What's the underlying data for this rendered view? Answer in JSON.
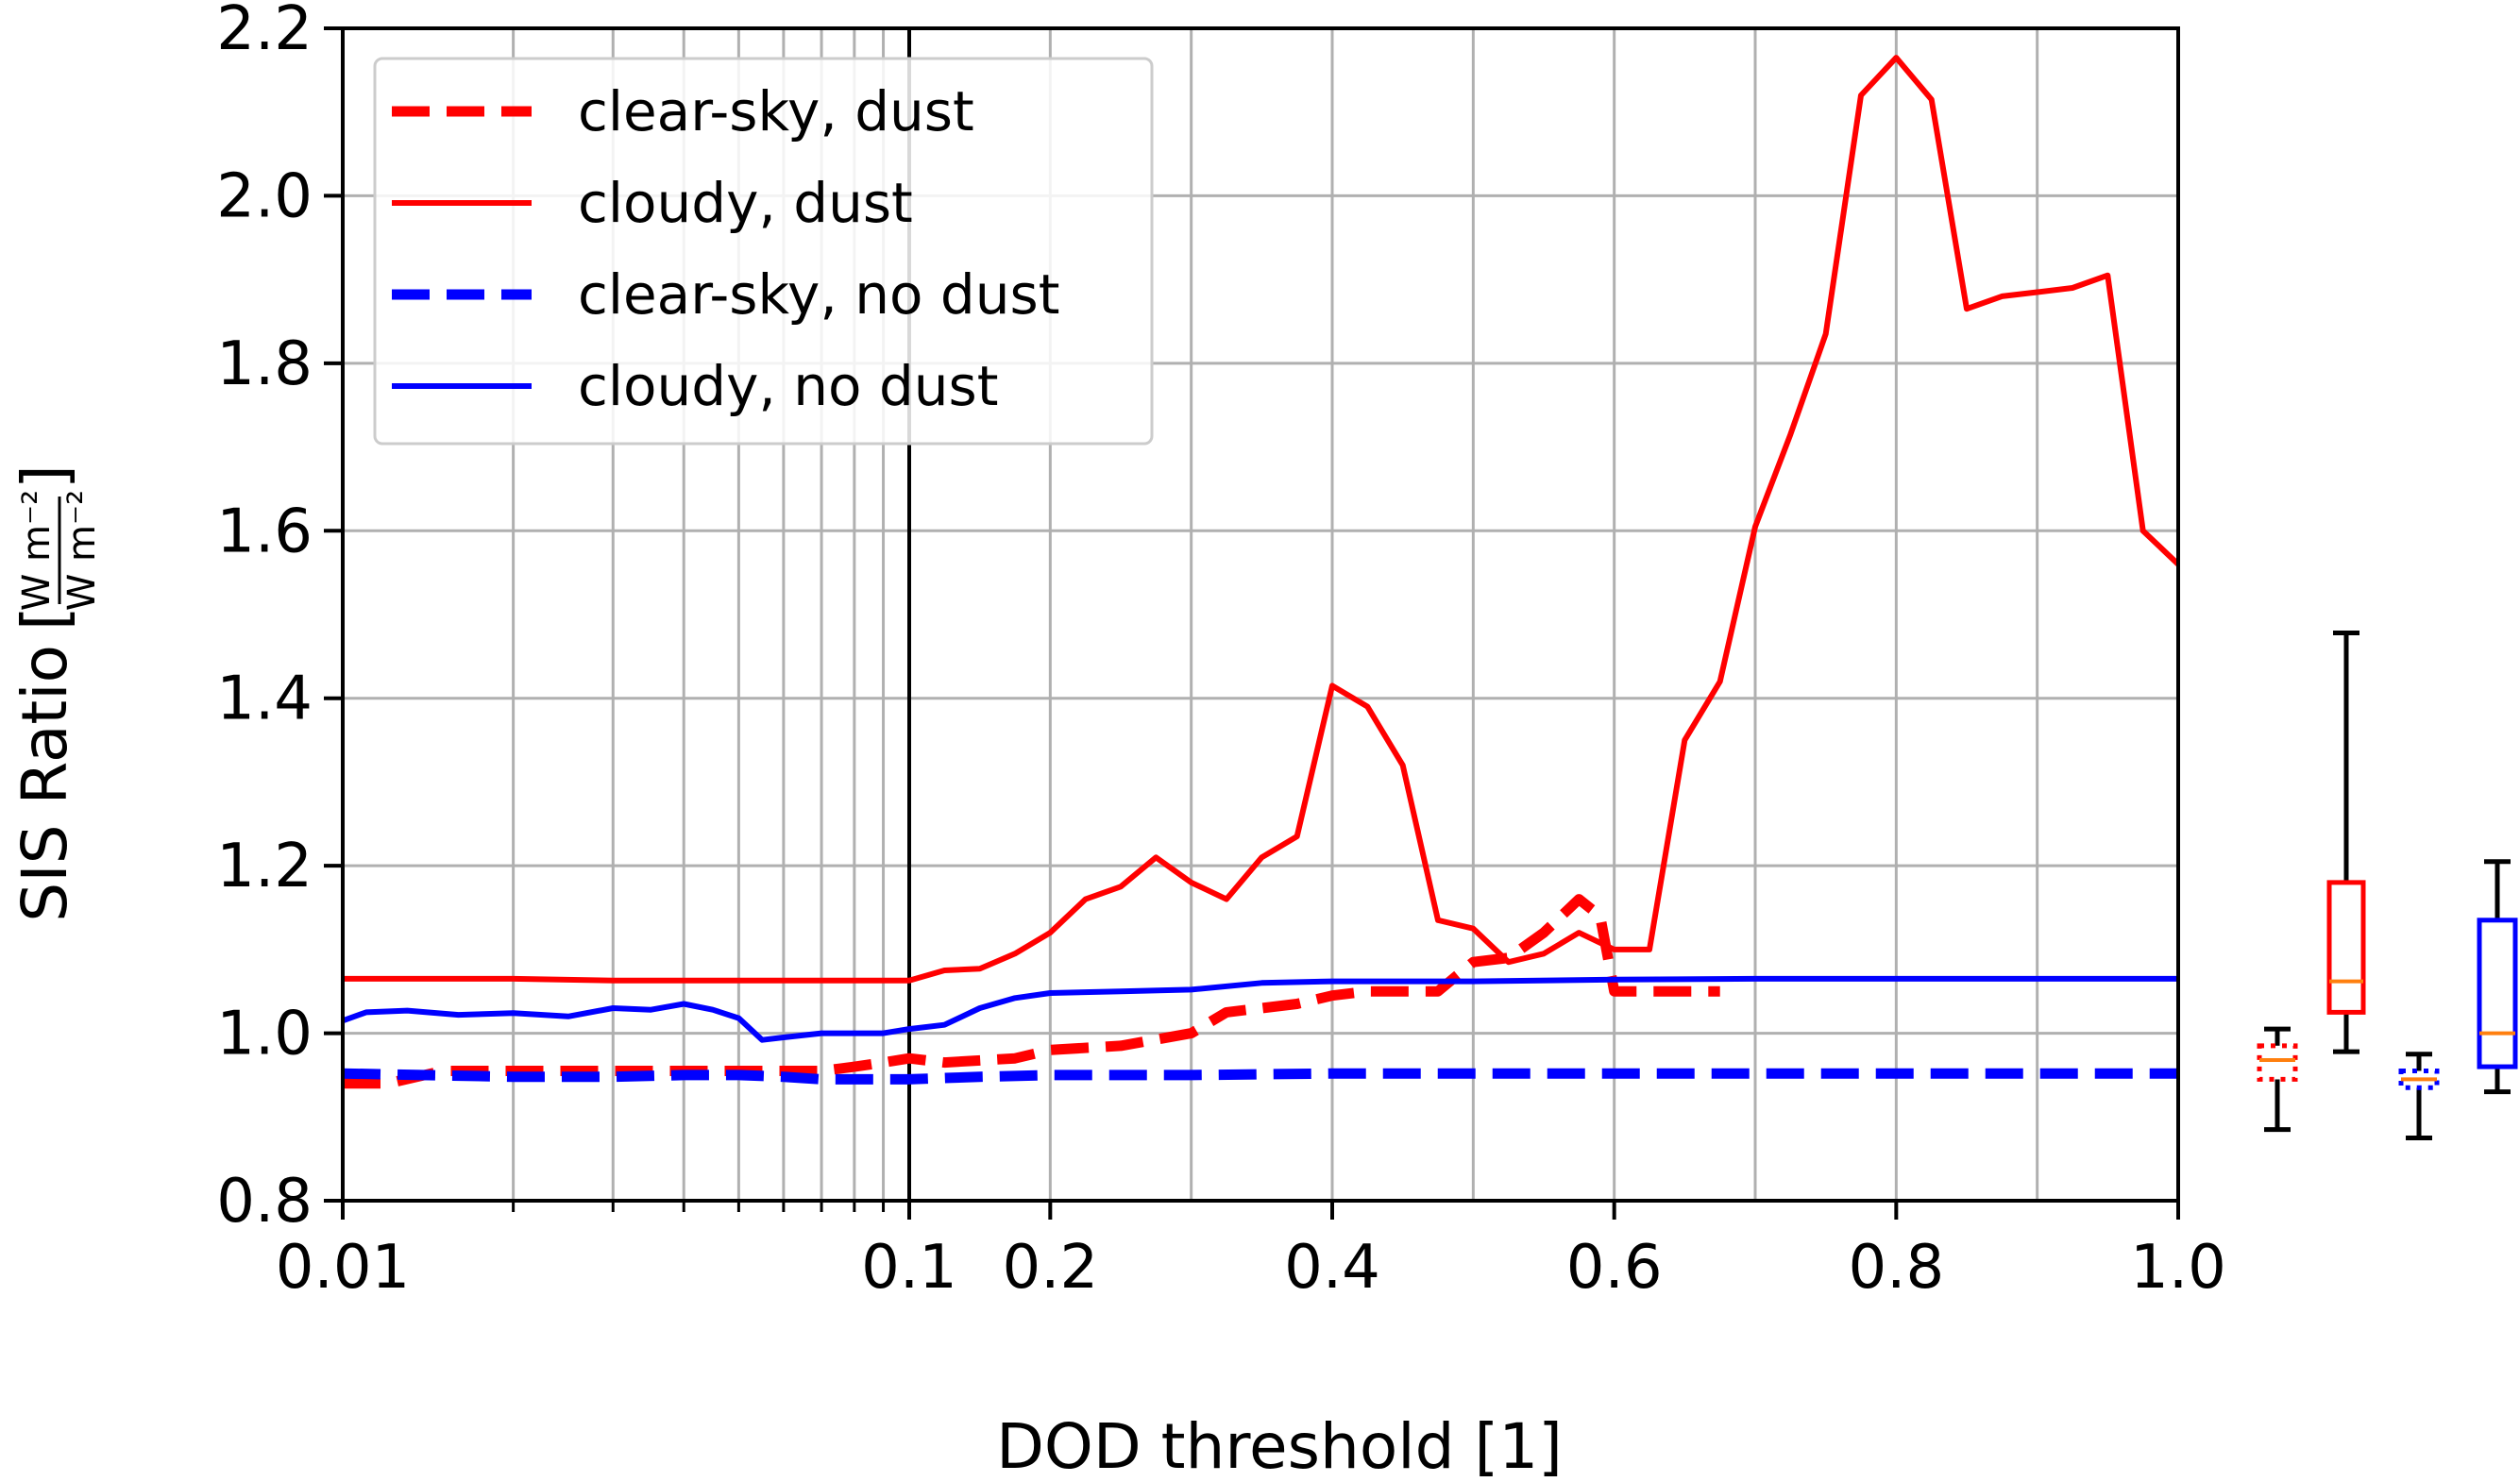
{
  "chart_data": {
    "type": "line",
    "xlabel": "DOD threshold [1]",
    "ylabel": "SIS Ratio",
    "ylabel_unit_numerator": "W m⁻²",
    "ylabel_unit_denominator": "W m⁻²",
    "ylim": [
      0.8,
      2.2
    ],
    "yticks": [
      "0.8",
      "1.0",
      "1.2",
      "1.4",
      "1.6",
      "1.8",
      "2.0",
      "2.2"
    ],
    "x_scale": "log from 0.01 to 0.1, linear from 0.1 to 1.0",
    "xticks": [
      "0.01",
      "0.1",
      "0.2",
      "0.4",
      "0.6",
      "0.8",
      "1.0"
    ],
    "grid": true,
    "legend_position": "upper-left",
    "series": [
      {
        "name": "clear-sky, dust",
        "color": "#ff0000",
        "style": "dashed",
        "points": [
          [
            0.01,
            0.94
          ],
          [
            0.012,
            0.94
          ],
          [
            0.015,
            0.955
          ],
          [
            0.02,
            0.955
          ],
          [
            0.03,
            0.955
          ],
          [
            0.04,
            0.955
          ],
          [
            0.05,
            0.955
          ],
          [
            0.06,
            0.955
          ],
          [
            0.07,
            0.955
          ],
          [
            0.08,
            0.96
          ],
          [
            0.09,
            0.965
          ],
          [
            0.1,
            0.97
          ],
          [
            0.125,
            0.965
          ],
          [
            0.175,
            0.97
          ],
          [
            0.2,
            0.98
          ],
          [
            0.25,
            0.985
          ],
          [
            0.3,
            1.0
          ],
          [
            0.325,
            1.025
          ],
          [
            0.35,
            1.03
          ],
          [
            0.375,
            1.035
          ],
          [
            0.4,
            1.045
          ],
          [
            0.425,
            1.05
          ],
          [
            0.45,
            1.05
          ],
          [
            0.475,
            1.05
          ],
          [
            0.5,
            1.085
          ],
          [
            0.525,
            1.09
          ],
          [
            0.55,
            1.12
          ],
          [
            0.575,
            1.16
          ],
          [
            0.59,
            1.14
          ],
          [
            0.6,
            1.05
          ],
          [
            0.625,
            1.05
          ],
          [
            0.65,
            1.05
          ],
          [
            0.675,
            1.05
          ]
        ]
      },
      {
        "name": "cloudy, dust",
        "color": "#ff0000",
        "style": "solid",
        "points": [
          [
            0.01,
            1.065
          ],
          [
            0.015,
            1.065
          ],
          [
            0.02,
            1.065
          ],
          [
            0.03,
            1.063
          ],
          [
            0.04,
            1.063
          ],
          [
            0.05,
            1.063
          ],
          [
            0.06,
            1.063
          ],
          [
            0.07,
            1.063
          ],
          [
            0.08,
            1.063
          ],
          [
            0.09,
            1.063
          ],
          [
            0.1,
            1.063
          ],
          [
            0.125,
            1.075
          ],
          [
            0.15,
            1.077
          ],
          [
            0.175,
            1.095
          ],
          [
            0.2,
            1.12
          ],
          [
            0.225,
            1.16
          ],
          [
            0.25,
            1.175
          ],
          [
            0.275,
            1.21
          ],
          [
            0.3,
            1.18
          ],
          [
            0.325,
            1.16
          ],
          [
            0.35,
            1.21
          ],
          [
            0.375,
            1.235
          ],
          [
            0.4,
            1.415
          ],
          [
            0.425,
            1.39
          ],
          [
            0.45,
            1.32
          ],
          [
            0.475,
            1.135
          ],
          [
            0.5,
            1.125
          ],
          [
            0.525,
            1.085
          ],
          [
            0.55,
            1.095
          ],
          [
            0.575,
            1.12
          ],
          [
            0.6,
            1.1
          ],
          [
            0.625,
            1.1
          ],
          [
            0.65,
            1.35
          ],
          [
            0.675,
            1.42
          ],
          [
            0.7,
            1.605
          ],
          [
            0.725,
            1.715
          ],
          [
            0.75,
            1.835
          ],
          [
            0.775,
            2.12
          ],
          [
            0.8,
            2.165
          ],
          [
            0.825,
            2.115
          ],
          [
            0.85,
            1.865
          ],
          [
            0.875,
            1.88
          ],
          [
            0.9,
            1.885
          ],
          [
            0.925,
            1.89
          ],
          [
            0.95,
            1.905
          ],
          [
            0.975,
            1.6
          ],
          [
            1.0,
            1.56
          ]
        ]
      },
      {
        "name": "clear-sky, no dust",
        "color": "#0000ff",
        "style": "dashed",
        "points": [
          [
            0.01,
            0.952
          ],
          [
            0.02,
            0.948
          ],
          [
            0.03,
            0.948
          ],
          [
            0.04,
            0.95
          ],
          [
            0.05,
            0.95
          ],
          [
            0.06,
            0.948
          ],
          [
            0.07,
            0.945
          ],
          [
            0.08,
            0.945
          ],
          [
            0.09,
            0.945
          ],
          [
            0.1,
            0.945
          ],
          [
            0.15,
            0.948
          ],
          [
            0.2,
            0.95
          ],
          [
            0.3,
            0.95
          ],
          [
            0.4,
            0.952
          ],
          [
            0.5,
            0.952
          ],
          [
            0.6,
            0.952
          ],
          [
            0.7,
            0.952
          ],
          [
            0.8,
            0.952
          ],
          [
            0.9,
            0.952
          ],
          [
            1.0,
            0.952
          ]
        ]
      },
      {
        "name": "cloudy, no dust",
        "color": "#0000ff",
        "style": "solid",
        "points": [
          [
            0.01,
            1.015
          ],
          [
            0.011,
            1.025
          ],
          [
            0.013,
            1.027
          ],
          [
            0.016,
            1.022
          ],
          [
            0.02,
            1.024
          ],
          [
            0.025,
            1.02
          ],
          [
            0.03,
            1.03
          ],
          [
            0.035,
            1.028
          ],
          [
            0.04,
            1.035
          ],
          [
            0.045,
            1.028
          ],
          [
            0.05,
            1.018
          ],
          [
            0.055,
            0.992
          ],
          [
            0.06,
            0.995
          ],
          [
            0.07,
            1.0
          ],
          [
            0.08,
            1.0
          ],
          [
            0.09,
            1.0
          ],
          [
            0.1,
            1.005
          ],
          [
            0.125,
            1.01
          ],
          [
            0.15,
            1.03
          ],
          [
            0.175,
            1.042
          ],
          [
            0.2,
            1.048
          ],
          [
            0.25,
            1.05
          ],
          [
            0.3,
            1.052
          ],
          [
            0.35,
            1.06
          ],
          [
            0.4,
            1.062
          ],
          [
            0.5,
            1.062
          ],
          [
            0.6,
            1.064
          ],
          [
            0.7,
            1.065
          ],
          [
            0.8,
            1.065
          ],
          [
            0.9,
            1.065
          ],
          [
            1.0,
            1.065
          ]
        ]
      }
    ],
    "boxplots": [
      {
        "color": "#ff0000",
        "style": "dotted",
        "whisker_low": 0.885,
        "q1": 0.945,
        "median": 0.968,
        "q3": 0.985,
        "whisker_high": 1.005
      },
      {
        "color": "#ff0000",
        "style": "solid",
        "whisker_low": 0.978,
        "q1": 1.025,
        "median": 1.062,
        "q3": 1.18,
        "whisker_high": 1.478
      },
      {
        "color": "#0000ff",
        "style": "dotted",
        "whisker_low": 0.875,
        "q1": 0.935,
        "median": 0.945,
        "q3": 0.955,
        "whisker_high": 0.975
      },
      {
        "color": "#0000ff",
        "style": "solid",
        "whisker_low": 0.93,
        "q1": 0.96,
        "median": 1.0,
        "q3": 1.135,
        "whisker_high": 1.205
      }
    ],
    "median_color": "#ff7f0e"
  }
}
